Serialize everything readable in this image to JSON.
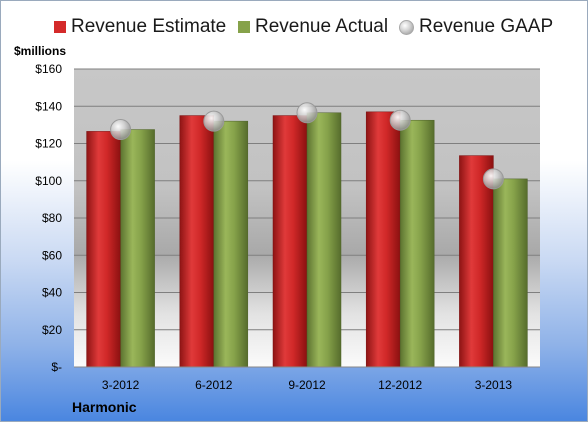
{
  "legend": {
    "estimate": "Revenue Estimate",
    "actual": "Revenue Actual",
    "gaap": "Revenue GAAP"
  },
  "units_label": "$millions",
  "company": "Harmonic",
  "colors": {
    "estimate": "#d42a2a",
    "actual": "#86a24a",
    "gaap": "#c8c8c8"
  },
  "chart_data": {
    "type": "bar",
    "categories": [
      "3-2012",
      "6-2012",
      "9-2012",
      "12-2012",
      "3-2013"
    ],
    "series": [
      {
        "name": "Revenue Estimate",
        "values": [
          126.5,
          135,
          135,
          137,
          113.5
        ]
      },
      {
        "name": "Revenue Actual",
        "values": [
          127.5,
          132,
          136.5,
          132.5,
          101
        ]
      },
      {
        "name": "Revenue GAAP",
        "values": [
          127.5,
          132,
          136.5,
          132.5,
          101
        ],
        "marker": "bubble"
      }
    ],
    "y_ticks": [
      0,
      20,
      40,
      60,
      80,
      100,
      120,
      140,
      160
    ],
    "y_tick_labels": [
      "$-",
      "$20",
      "$40",
      "$60",
      "$80",
      "$100",
      "$120",
      "$140",
      "$160"
    ],
    "ylabel": "$millions",
    "ylim": [
      0,
      160
    ],
    "grid": true,
    "legend_position": "top"
  }
}
